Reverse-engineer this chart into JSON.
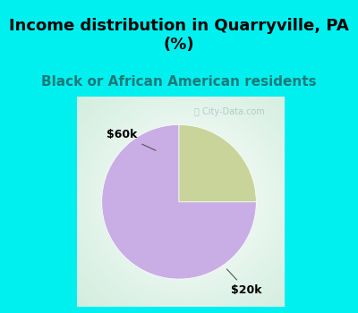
{
  "title": "Income distribution in Quarryville, PA\n(%)",
  "subtitle": "Black or African American residents",
  "slices": [
    75,
    25
  ],
  "labels": [
    "$20k",
    "$60k"
  ],
  "colors": [
    "#c9aee5",
    "#c8d49a"
  ],
  "background_cyan": "#00f0f0",
  "background_plot": "#ffffff",
  "title_fontsize": 13,
  "subtitle_fontsize": 11,
  "label_fontsize": 9,
  "watermark": "ⓘ City-Data.com",
  "start_angle": 90
}
